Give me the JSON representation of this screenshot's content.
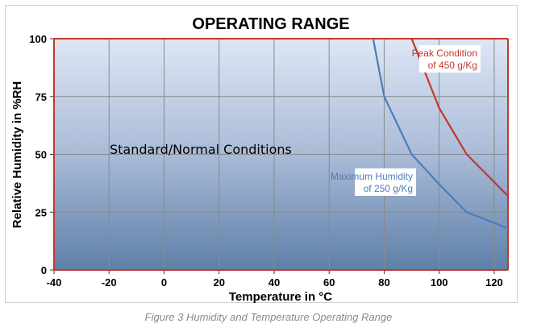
{
  "chart_data": {
    "type": "line",
    "title": "OPERATING RANGE",
    "xlabel": "Temperature in °C",
    "ylabel": "Relative Humidity in %RH",
    "xlim": [
      -40,
      125
    ],
    "ylim": [
      0,
      100
    ],
    "x_ticks": [
      -40,
      -20,
      0,
      20,
      40,
      60,
      80,
      100,
      120
    ],
    "y_ticks": [
      0,
      25,
      50,
      75,
      100
    ],
    "grid": true,
    "region_label": "Standard/Normal Conditions",
    "series": [
      {
        "name": "Maximum Humidity of 250 g/Kg",
        "label_lines": [
          "Maximum Humidity",
          "of 250 g/Kg"
        ],
        "color": "#4a7ebb",
        "points": [
          [
            76,
            100
          ],
          [
            80,
            75
          ],
          [
            90,
            50
          ],
          [
            100,
            37
          ],
          [
            110,
            25
          ],
          [
            125,
            18
          ]
        ]
      },
      {
        "name": "Peak Condition of 450 g/Kg",
        "label_lines": [
          "Peak Condition",
          "of 450 g/Kg"
        ],
        "color": "#c0392b",
        "points": [
          [
            90,
            100
          ],
          [
            100,
            70
          ],
          [
            110,
            50
          ],
          [
            125,
            32
          ]
        ]
      }
    ]
  },
  "caption": "Figure 3 Humidity and Temperature Operating Range"
}
